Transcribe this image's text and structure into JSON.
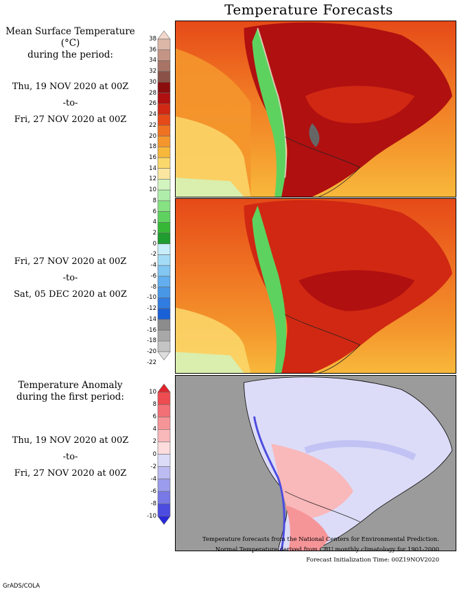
{
  "title": "Temperature Forecasts",
  "mean_panel_heading": [
    "Mean Surface Temperature (°C)",
    "during the period:"
  ],
  "period1": {
    "start": "Thu, 19 NOV 2020 at 00Z",
    "sep": "-to-",
    "end": "Fri, 27 NOV 2020 at 00Z"
  },
  "period2": {
    "start": "Fri, 27 NOV 2020 at 00Z",
    "sep": "-to-",
    "end": "Sat, 05 DEC 2020 at 00Z"
  },
  "anomaly_heading": [
    "Temperature Anomaly",
    "during the first period:"
  ],
  "period3": {
    "start": "Thu, 19 NOV 2020 at 00Z",
    "sep": "-to-",
    "end": "Fri, 27 NOV 2020 at 00Z"
  },
  "temp_scale": {
    "labels": [
      "38",
      "36",
      "34",
      "32",
      "30",
      "28",
      "26",
      "24",
      "22",
      "20",
      "18",
      "16",
      "14",
      "12",
      "10",
      "8",
      "6",
      "4",
      "2",
      "0",
      "-2",
      "-4",
      "-6",
      "-8",
      "-10",
      "-12",
      "-14",
      "-16",
      "-18",
      "-20",
      "-22"
    ],
    "colors": [
      "#f2d8cc",
      "#dcb7a8",
      "#c49485",
      "#a87466",
      "#8a5148",
      "#8c0d0d",
      "#b01010",
      "#d02812",
      "#e64a18",
      "#ef7222",
      "#f4962c",
      "#f8b83c",
      "#fbd86c",
      "#fae6a0",
      "#d2f5c0",
      "#aeeeaa",
      "#86e282",
      "#5ed25e",
      "#36b836",
      "#1e9d30",
      "#c8eefa",
      "#a4dcf6",
      "#82c6f2",
      "#62aeee",
      "#4896e6",
      "#307ce0",
      "#1a60d6",
      "#8c8c8c",
      "#a8a8a8",
      "#c4c4c4",
      "#dedede"
    ]
  },
  "anom_scale": {
    "labels": [
      "10",
      "8",
      "6",
      "4",
      "2",
      "0",
      "-2",
      "-4",
      "-6",
      "-8",
      "-10"
    ],
    "colors": [
      "#e0242a",
      "#ee4c50",
      "#f37076",
      "#f69598",
      "#f9b8ba",
      "#fcdcdd",
      "#dcdcf8",
      "#bcbcf2",
      "#9c9cec",
      "#7878e6",
      "#4c4ce0",
      "#2828dc"
    ]
  },
  "footer": [
    "Temperature forecasts from the National Centers for Environmental Prediction.",
    "Normal Temperature derived from CRU monthly climatology for 1901-2000",
    "Forecast Initialization Time: 00Z19NOV2020"
  ],
  "credit": "GrADS/COLA",
  "colors": {
    "ocean_gray": "#9b9b9b",
    "land_fill": "#c0c0c0"
  }
}
